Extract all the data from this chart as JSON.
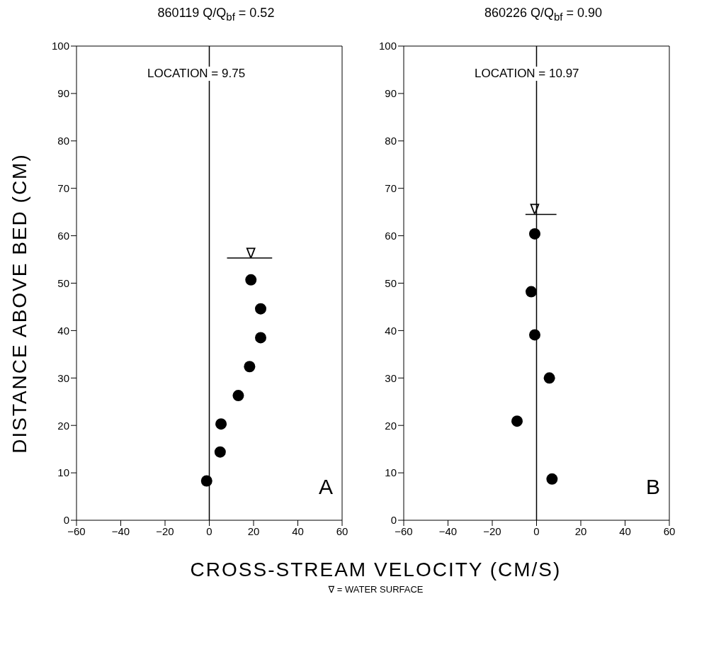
{
  "chart_data": [
    {
      "type": "scatter",
      "title": "860119      Q/Q$_{bf}$ = 0.52",
      "xlabel": "CROSS-STREAM VELOCITY (CM/S)",
      "ylabel": "DISTANCE ABOVE BED (CM)",
      "xlim": [
        -60,
        60
      ],
      "xticks": [
        -60,
        -40,
        -20,
        0,
        20,
        40,
        60
      ],
      "ylim": [
        0,
        100
      ],
      "yticks": [
        0,
        10,
        20,
        30,
        40,
        50,
        60,
        70,
        80,
        90,
        100
      ],
      "series": [
        {
          "marker": "circle",
          "color": "#000000",
          "x": [
            -1.2,
            4.9,
            5.3,
            13.1,
            18.2,
            23.2,
            23.2,
            18.8
          ],
          "values": [
            8.3,
            14.4,
            20.3,
            26.3,
            32.4,
            38.5,
            44.6,
            50.7
          ]
        },
        {
          "type": "line",
          "marker": "none",
          "color": "#000000",
          "x": [
            8,
            28.4
          ],
          "values": [
            55.3,
            55.3
          ]
        }
      ],
      "ref_lines": [
        {
          "axis": "x",
          "value": 0,
          "color": "#000000"
        }
      ],
      "annotations": [
        "LOCATION = 9.75",
        "A",
        "∇ = WATER SURFACE",
        {
          "text": "∇",
          "x": 18.8,
          "y": 55.3
        }
      ]
    },
    {
      "type": "scatter",
      "title": "860226      Q/Q$_{bf}$ = 0.90",
      "xlim": [
        -60,
        60
      ],
      "xticks": [
        -60,
        -40,
        -20,
        0,
        20,
        40,
        60
      ],
      "ylim": [
        0,
        100
      ],
      "yticks": [
        0,
        10,
        20,
        30,
        40,
        50,
        60,
        70,
        80,
        90,
        100
      ],
      "series": [
        {
          "marker": "circle",
          "color": "#000000",
          "x": [
            -0.8,
            -2.4,
            -0.8,
            5.8,
            -8.8,
            7.0
          ],
          "values": [
            60.4,
            48.2,
            39.1,
            30.0,
            20.9,
            8.7
          ]
        },
        {
          "type": "line",
          "marker": "none",
          "color": "#000000",
          "x": [
            -5,
            9
          ],
          "values": [
            64.5,
            64.5
          ]
        }
      ],
      "ref_lines": [
        {
          "axis": "x",
          "value": 0,
          "color": "#000000"
        }
      ],
      "annotations": [
        "LOCATION = 10.97",
        "B",
        {
          "text": "∇",
          "x": -0.8,
          "y": 64.5
        }
      ]
    }
  ]
}
